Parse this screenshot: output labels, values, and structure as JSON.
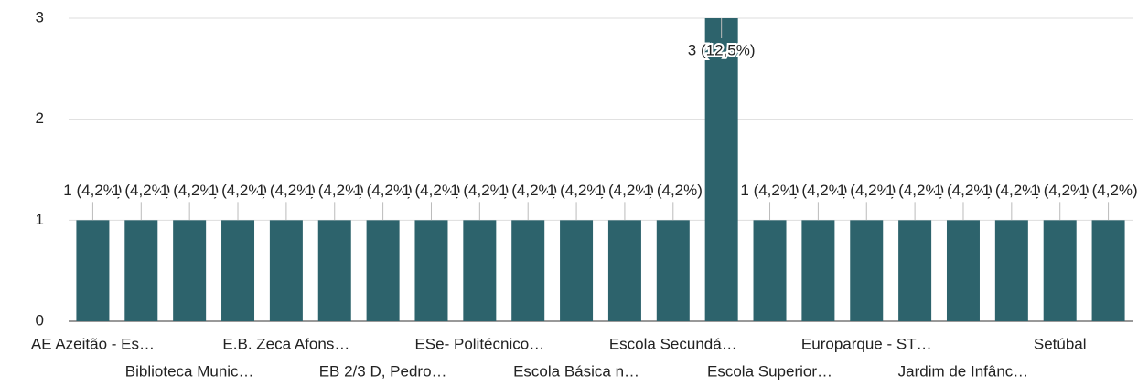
{
  "chart_data": {
    "type": "bar",
    "categories": [
      "AE Azeitão - Es…",
      null,
      "Biblioteca Munic…",
      null,
      "E.B. Zeca Afons…",
      null,
      "EB 2/3 D, Pedro…",
      null,
      "ESe- Politécnico…",
      null,
      "Escola Básica n…",
      null,
      "Escola Secundá…",
      null,
      "Escola Superior…",
      null,
      "Europarque - ST…",
      null,
      "Jardim de Infânc…",
      null,
      "Setúbal",
      null
    ],
    "values": [
      1,
      1,
      1,
      1,
      1,
      1,
      1,
      1,
      1,
      1,
      1,
      1,
      1,
      3,
      1,
      1,
      1,
      1,
      1,
      1,
      1,
      1
    ],
    "value_labels": [
      "1 (4,2%)",
      "1 (4,2%)",
      "1 (4,2%)",
      "1 (4,2%)",
      "1 (4,2%)",
      "1 (4,2%)",
      "1 (4,2%)",
      "1 (4,2%)",
      "1 (4,2%)",
      "1 (4,2%)",
      "1 (4,2%)",
      "1 (4,2%)",
      "1 (4,2%)",
      "3 (12,5%)",
      "1 (4,2%)",
      "1 (4,2%)",
      "1 (4,2%)",
      "1 (4,2%)",
      "1 (4,2%)",
      "1 (4,2%)",
      "1 (4,2%)",
      "1 (4,2%)"
    ],
    "color": "#2d636c",
    "ylim": [
      0,
      3
    ],
    "yticks": [
      0,
      1,
      2,
      3
    ],
    "grid": true
  }
}
